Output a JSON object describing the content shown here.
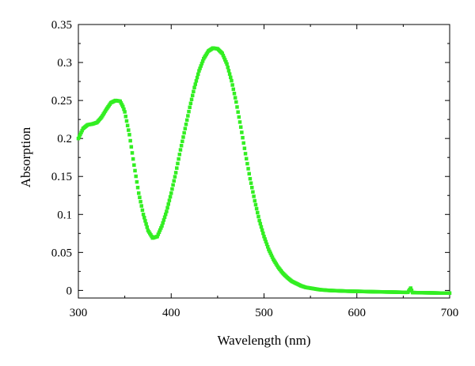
{
  "chart_data": {
    "type": "scatter",
    "title": "",
    "xlabel": "Wavelength (nm)",
    "ylabel": "Absorption",
    "xlim": [
      300,
      700
    ],
    "ylim": [
      -0.01,
      0.35
    ],
    "xticks": [
      300,
      400,
      500,
      600,
      700
    ],
    "xtick_labels": [
      "300",
      "400",
      "500",
      "600",
      "700"
    ],
    "yticks": [
      0,
      0.05,
      0.1,
      0.15,
      0.2,
      0.25,
      0.3,
      0.35
    ],
    "ytick_labels": [
      "0",
      "0.05",
      "0.1",
      "0.15",
      "0.2",
      "0.25",
      "0.3",
      "0.35"
    ],
    "grid": false,
    "legend": "none",
    "series": [
      {
        "color": "#33ee22",
        "x": [
          300,
          305,
          310,
          315,
          320,
          325,
          330,
          335,
          340,
          345,
          348,
          350,
          355,
          360,
          365,
          370,
          375,
          380,
          385,
          390,
          395,
          400,
          405,
          410,
          415,
          420,
          425,
          430,
          435,
          440,
          445,
          450,
          455,
          460,
          465,
          470,
          475,
          480,
          485,
          490,
          495,
          500,
          505,
          510,
          515,
          520,
          525,
          530,
          535,
          540,
          545,
          550,
          555,
          560,
          565,
          570,
          580,
          590,
          600,
          610,
          620,
          630,
          640,
          650,
          655,
          658,
          660,
          665,
          670,
          680,
          690,
          700
        ],
        "y": [
          0.2,
          0.213,
          0.218,
          0.219,
          0.221,
          0.228,
          0.238,
          0.247,
          0.25,
          0.249,
          0.242,
          0.235,
          0.205,
          0.165,
          0.128,
          0.1,
          0.079,
          0.069,
          0.071,
          0.085,
          0.104,
          0.128,
          0.155,
          0.185,
          0.213,
          0.241,
          0.267,
          0.289,
          0.305,
          0.315,
          0.319,
          0.318,
          0.312,
          0.298,
          0.276,
          0.248,
          0.215,
          0.18,
          0.147,
          0.118,
          0.092,
          0.071,
          0.054,
          0.041,
          0.031,
          0.023,
          0.017,
          0.012,
          0.009,
          0.006,
          0.004,
          0.003,
          0.002,
          0.001,
          0.0005,
          0,
          -0.0005,
          -0.001,
          -0.0012,
          -0.0015,
          -0.0018,
          -0.002,
          -0.0022,
          -0.0025,
          -0.0025,
          0.003,
          -0.0028,
          -0.003,
          -0.003,
          -0.0032,
          -0.0035,
          -0.0035
        ]
      }
    ]
  }
}
